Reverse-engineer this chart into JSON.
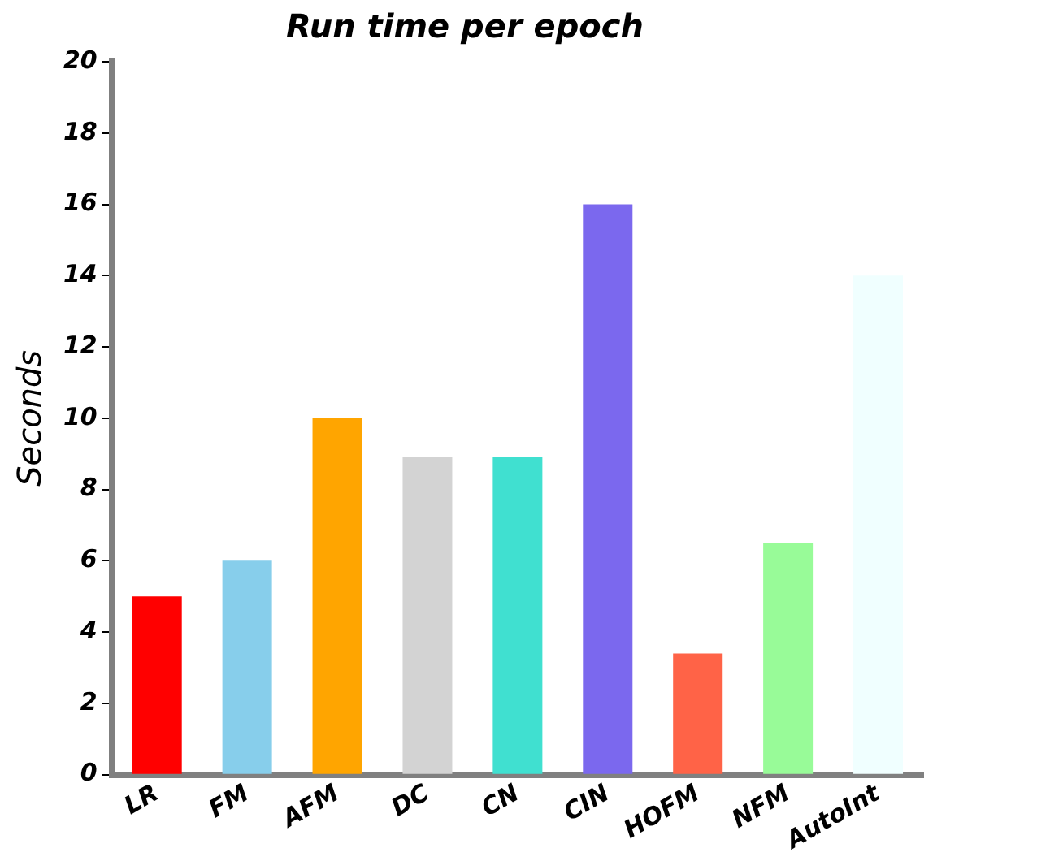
{
  "chart_data": {
    "type": "bar",
    "title": "Run time per epoch",
    "ylabel": "Seconds",
    "categories": [
      "LR",
      "FM",
      "AFM",
      "DC",
      "CN",
      "CIN",
      "HOFM",
      "NFM",
      "AutoInt"
    ],
    "values": [
      5,
      6,
      10,
      8.9,
      8.9,
      16,
      3.4,
      6.5,
      14
    ],
    "colors": [
      "#ff0000",
      "#87ceeb",
      "#ffa500",
      "#d3d3d3",
      "#40e0d0",
      "#7b68ee",
      "#ff6347",
      "#98fb98",
      "#f0ffff"
    ],
    "ylim": [
      0,
      20
    ],
    "yticks": [
      0,
      2,
      4,
      6,
      8,
      10,
      12,
      14,
      16,
      18,
      20
    ],
    "grid": false,
    "legend": false
  }
}
